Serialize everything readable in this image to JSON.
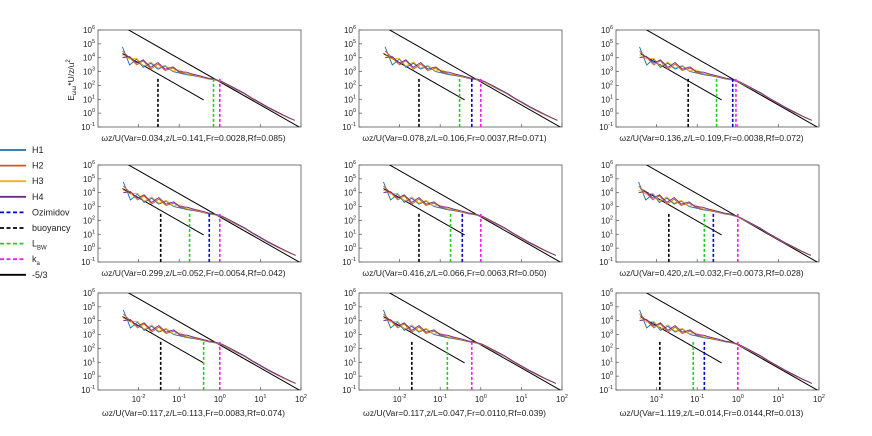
{
  "chart_data": {
    "type": "line",
    "layout": "3x3 grid of log-log spectra panels",
    "ylabel": "E_ωω*U/z/u*²",
    "ylabel_parts": {
      "e": "E",
      "sub": "ωω",
      "mid": "*U/z/u",
      "sup": "2"
    },
    "xscale": "log",
    "yscale": "log",
    "xlim": [
      0.001,
      100
    ],
    "ylim": [
      0.1,
      1000000
    ],
    "x_ticks": [
      "10",
      "10",
      "10",
      "10",
      "10"
    ],
    "x_tick_exponents": [
      "-2",
      "-1",
      "0",
      "1",
      "2"
    ],
    "y_ticks": [
      "10",
      "10",
      "10",
      "10",
      "10",
      "10",
      "10",
      "10"
    ],
    "y_tick_exponents": [
      "-1",
      "0",
      "1",
      "2",
      "3",
      "4",
      "5",
      "6"
    ],
    "legend": {
      "position": "left, outside plots",
      "entries": [
        {
          "label": "H1",
          "color": "#1f6fa8",
          "style": "solid"
        },
        {
          "label": "H2",
          "color": "#d9541a",
          "style": "solid"
        },
        {
          "label": "H3",
          "color": "#edb120",
          "style": "solid"
        },
        {
          "label": "H4",
          "color": "#6b2a8e",
          "style": "solid"
        },
        {
          "label": "Ozimidov",
          "color": "#0000cc",
          "style": "dashed"
        },
        {
          "label": "buoyancy",
          "color": "#000000",
          "style": "dashed"
        },
        {
          "label": "L",
          "sub": "BW",
          "color": "#22cc22",
          "style": "dashed"
        },
        {
          "label": "k",
          "sub": "a",
          "color": "#ee22ee",
          "style": "dashed"
        },
        {
          "label": "-5/3",
          "color": "#000000",
          "style": "solid"
        }
      ]
    },
    "panels": [
      {
        "xlabel": "ωz/U(Var=0.034,z/L=0.141,Fr=0.0028,Rf=0.085)",
        "buoyancy": 0.03,
        "lbw": 0.7,
        "ozmidov": null,
        "ka": 1.0
      },
      {
        "xlabel": "ωz/U(Var=0.078,z/L=0.106,Fr=0.0037,Rf=0.071)",
        "buoyancy": 0.03,
        "lbw": 0.3,
        "ozmidov": 0.6,
        "ka": 1.0
      },
      {
        "xlabel": "ωz/U(Var=0.136,z/L=0.109,Fr=0.0038,Rf=0.072)",
        "buoyancy": 0.06,
        "lbw": 0.3,
        "ozmidov": 0.75,
        "ka": 0.9
      },
      {
        "xlabel": "ωz/U(Var=0.299,z/L=0.052,Fr=0.0054,Rf=0.042)",
        "buoyancy": 0.035,
        "lbw": 0.18,
        "ozmidov": 0.55,
        "ka": 1.0
      },
      {
        "xlabel": "ωz/U(Var=0.416,z/L=0.066,Fr=0.0063,Rf=0.050)",
        "buoyancy": 0.03,
        "lbw": 0.18,
        "ozmidov": 0.35,
        "ka": 1.0
      },
      {
        "xlabel": "ωz/U(Var=0.420,z/L=0.032,Fr=0.0073,Rf=0.028)",
        "buoyancy": 0.02,
        "lbw": 0.15,
        "ozmidov": 0.25,
        "ka": 1.0
      },
      {
        "xlabel": "ωz/U(Var=0.117,z/L=0.113,Fr=0.0083,Rf=0.074)",
        "buoyancy": 0.035,
        "lbw": 0.4,
        "ozmidov": null,
        "ka": 1.0
      },
      {
        "xlabel": "ωz/U(Var=0.117,z/L=0.047,Fr=0.0110,Rf=0.039)",
        "buoyancy": 0.02,
        "lbw": 0.15,
        "ozmidov": null,
        "ka": 0.6
      },
      {
        "xlabel": "ωz/U(Var=1.119,z/L=0.014,Fr=0.0144,Rf=0.013)",
        "buoyancy": 0.012,
        "lbw": 0.08,
        "ozmidov": 0.15,
        "ka": 1.0
      }
    ],
    "series_x": [
      0.004,
      0.006,
      0.009,
      0.013,
      0.02,
      0.03,
      0.045,
      0.07,
      0.1,
      0.15,
      0.22,
      0.33,
      0.5,
      0.75,
      1.1,
      1.7,
      2.5,
      4,
      6,
      10,
      15,
      25,
      40,
      70
    ],
    "series": [
      {
        "name": "H1",
        "y": [
          60000,
          3000,
          8000,
          2000,
          4000,
          1500,
          2500,
          1000,
          800,
          600,
          500,
          400,
          300,
          250,
          180,
          90,
          50,
          25,
          12,
          5,
          2.5,
          1.2,
          0.6,
          0.3
        ]
      },
      {
        "name": "H2",
        "y": [
          30000,
          10000,
          3000,
          6000,
          1500,
          3500,
          1200,
          1800,
          900,
          700,
          550,
          420,
          320,
          260,
          180,
          95,
          52,
          26,
          12,
          5.2,
          2.6,
          1.2,
          0.6,
          0.3
        ]
      },
      {
        "name": "H3",
        "y": [
          15000,
          8000,
          9000,
          2500,
          5000,
          1800,
          2800,
          1100,
          1300,
          700,
          600,
          450,
          330,
          270,
          190,
          100,
          55,
          27,
          13,
          5.5,
          2.7,
          1.3,
          0.6,
          0.3
        ]
      },
      {
        "name": "H4",
        "y": [
          10000,
          12000,
          4000,
          7000,
          2000,
          4500,
          1500,
          2200,
          1000,
          900,
          650,
          480,
          350,
          280,
          200,
          105,
          57,
          28,
          13,
          5.6,
          2.8,
          1.3,
          0.65,
          0.3
        ]
      }
    ],
    "ref_lines": {
      "upper_slope": {
        "x": [
          0.004,
          100
        ],
        "y": [
          1800000,
          0.084
        ]
      },
      "lower_slope": {
        "x": [
          0.004,
          0.4
        ],
        "y": [
          20000,
          9
        ]
      }
    }
  }
}
